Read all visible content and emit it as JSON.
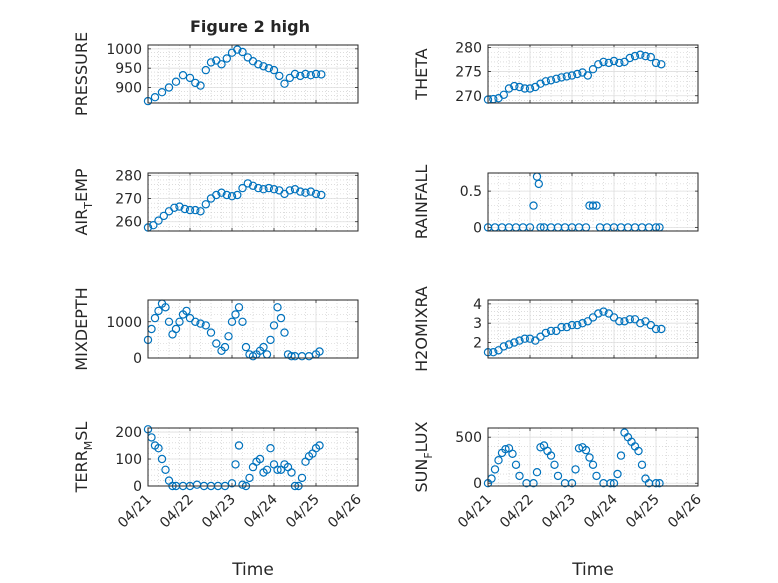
{
  "figure_title": "Figure 2 high",
  "colors": {
    "marker": "#0072BD",
    "axis": "#262626",
    "grid": "#dfdfdf",
    "minor_grid": "#c8c8c8",
    "background": "#ffffff"
  },
  "chart_data": [
    {
      "type": "scatter",
      "id": "pressure",
      "marker": "circle",
      "ylabel": "PRESSURE",
      "ylabel_sub": "",
      "xlabel": "",
      "xlim": [
        "04/21",
        "04/26"
      ],
      "xticks": [],
      "ylim": [
        860,
        1010
      ],
      "yticks": [
        "900",
        "950",
        "1000"
      ],
      "grid": true,
      "minor_grid": true,
      "x": [
        "04/21 00:00",
        "04/21 04:00",
        "04/21 08:00",
        "04/21 12:00",
        "04/21 16:00",
        "04/21 20:00",
        "04/22 00:00",
        "04/22 03:00",
        "04/22 06:00",
        "04/22 09:00",
        "04/22 12:00",
        "04/22 15:00",
        "04/22 18:00",
        "04/22 21:00",
        "04/23 00:00",
        "04/23 03:00",
        "04/23 06:00",
        "04/23 09:00",
        "04/23 12:00",
        "04/23 15:00",
        "04/23 18:00",
        "04/23 21:00",
        "04/24 00:00",
        "04/24 03:00",
        "04/24 06:00",
        "04/24 09:00",
        "04/24 12:00",
        "04/24 15:00",
        "04/24 18:00",
        "04/24 21:00",
        "04/25 00:00",
        "04/25 03:00"
      ],
      "y": [
        865,
        875,
        888,
        900,
        915,
        932,
        925,
        912,
        905,
        945,
        965,
        970,
        960,
        975,
        990,
        998,
        992,
        978,
        968,
        960,
        955,
        950,
        945,
        930,
        910,
        925,
        935,
        930,
        935,
        932,
        935,
        934
      ]
    },
    {
      "type": "scatter",
      "id": "theta",
      "marker": "circle",
      "ylabel": "THETA",
      "ylabel_sub": "",
      "xlabel": "",
      "xlim": [
        "04/21",
        "04/26"
      ],
      "xticks": [],
      "ylim": [
        268.5,
        280.5
      ],
      "yticks": [
        "270",
        "275",
        "280"
      ],
      "grid": true,
      "minor_grid": true,
      "x": [
        "04/21 00:00",
        "04/21 03:00",
        "04/21 06:00",
        "04/21 09:00",
        "04/21 12:00",
        "04/21 15:00",
        "04/21 18:00",
        "04/21 21:00",
        "04/22 00:00",
        "04/22 03:00",
        "04/22 06:00",
        "04/22 09:00",
        "04/22 12:00",
        "04/22 15:00",
        "04/22 18:00",
        "04/22 21:00",
        "04/23 00:00",
        "04/23 03:00",
        "04/23 06:00",
        "04/23 09:00",
        "04/23 12:00",
        "04/23 15:00",
        "04/23 18:00",
        "04/23 21:00",
        "04/24 00:00",
        "04/24 03:00",
        "04/24 06:00",
        "04/24 09:00",
        "04/24 12:00",
        "04/24 15:00",
        "04/24 18:00",
        "04/24 21:00",
        "04/25 00:00",
        "04/25 03:00"
      ],
      "y": [
        269.2,
        269.3,
        269.5,
        270.2,
        271.5,
        272.0,
        271.8,
        271.5,
        271.5,
        271.8,
        272.5,
        273.0,
        273.2,
        273.5,
        273.8,
        274.0,
        274.2,
        274.5,
        274.8,
        274.2,
        275.5,
        276.5,
        277.0,
        276.8,
        277.2,
        276.8,
        277.0,
        277.8,
        278.2,
        278.5,
        278.2,
        278.0,
        276.8,
        276.5
      ]
    },
    {
      "type": "scatter",
      "id": "air_temp",
      "marker": "circle",
      "ylabel": "AIR",
      "ylabel_sub": "T",
      "ylabel_suffix": "EMP",
      "xlabel": "",
      "xlim": [
        "04/21",
        "04/26"
      ],
      "xticks": [],
      "ylim": [
        256,
        281
      ],
      "yticks": [
        "260",
        "270",
        "280"
      ],
      "grid": true,
      "minor_grid": true,
      "x": [
        "04/21 00:00",
        "04/21 03:00",
        "04/21 06:00",
        "04/21 09:00",
        "04/21 12:00",
        "04/21 15:00",
        "04/21 18:00",
        "04/21 21:00",
        "04/22 00:00",
        "04/22 03:00",
        "04/22 06:00",
        "04/22 09:00",
        "04/22 12:00",
        "04/22 15:00",
        "04/22 18:00",
        "04/22 21:00",
        "04/23 00:00",
        "04/23 03:00",
        "04/23 06:00",
        "04/23 09:00",
        "04/23 12:00",
        "04/23 15:00",
        "04/23 18:00",
        "04/23 21:00",
        "04/24 00:00",
        "04/24 03:00",
        "04/24 06:00",
        "04/24 09:00",
        "04/24 12:00",
        "04/24 15:00",
        "04/24 18:00",
        "04/24 21:00",
        "04/25 00:00",
        "04/25 03:00"
      ],
      "y": [
        257.5,
        258.5,
        260.5,
        262.5,
        264.5,
        266.0,
        266.5,
        265.5,
        265.0,
        265.0,
        264.5,
        267.5,
        270.0,
        271.5,
        272.5,
        271.5,
        271.0,
        271.5,
        274.5,
        276.5,
        275.5,
        274.5,
        274.0,
        274.5,
        274.0,
        273.5,
        272.0,
        273.5,
        274.0,
        273.0,
        272.5,
        273.0,
        272.0,
        271.5
      ]
    },
    {
      "type": "scatter",
      "id": "rainfall",
      "marker": "circle",
      "ylabel": "RAINFALL",
      "ylabel_sub": "",
      "xlabel": "",
      "xlim": [
        "04/21",
        "04/26"
      ],
      "xticks": [],
      "ylim": [
        -0.05,
        0.75
      ],
      "yticks": [
        "0",
        "0.5"
      ],
      "grid": true,
      "minor_grid": true,
      "x": [
        "04/21 00:00",
        "04/21 04:00",
        "04/21 08:00",
        "04/21 12:00",
        "04/21 16:00",
        "04/21 20:00",
        "04/22 00:00",
        "04/22 02:00",
        "04/22 04:00",
        "04/22 05:00",
        "04/22 06:00",
        "04/22 08:00",
        "04/22 12:00",
        "04/22 16:00",
        "04/22 20:00",
        "04/23 00:00",
        "04/23 04:00",
        "04/23 08:00",
        "04/23 10:00",
        "04/23 12:00",
        "04/23 14:00",
        "04/23 16:00",
        "04/23 20:00",
        "04/24 00:00",
        "04/24 04:00",
        "04/24 08:00",
        "04/24 12:00",
        "04/24 16:00",
        "04/24 20:00",
        "04/25 00:00",
        "04/25 02:00"
      ],
      "y": [
        0,
        0,
        0,
        0,
        0,
        0,
        0,
        0.3,
        0.7,
        0.6,
        0,
        0,
        0,
        0,
        0,
        0,
        0,
        0,
        0.3,
        0.3,
        0.3,
        0,
        0,
        0,
        0,
        0,
        0,
        0,
        0,
        0,
        0
      ]
    },
    {
      "type": "scatter",
      "id": "mixdepth",
      "marker": "circle",
      "ylabel": "MIXDEPTH",
      "ylabel_sub": "",
      "xlabel": "",
      "xlim": [
        "04/21",
        "04/26"
      ],
      "xticks": [],
      "ylim": [
        0,
        1600
      ],
      "yticks": [
        "0",
        "1000"
      ],
      "grid": true,
      "minor_grid": true,
      "x": [
        "04/21 00:00",
        "04/21 02:00",
        "04/21 04:00",
        "04/21 06:00",
        "04/21 08:00",
        "04/21 10:00",
        "04/21 12:00",
        "04/21 14:00",
        "04/21 16:00",
        "04/21 18:00",
        "04/21 20:00",
        "04/21 22:00",
        "04/22 00:00",
        "04/22 03:00",
        "04/22 06:00",
        "04/22 09:00",
        "04/22 12:00",
        "04/22 15:00",
        "04/22 18:00",
        "04/22 20:00",
        "04/22 22:00",
        "04/23 00:00",
        "04/23 02:00",
        "04/23 04:00",
        "04/23 06:00",
        "04/23 08:00",
        "04/23 10:00",
        "04/23 12:00",
        "04/23 14:00",
        "04/23 16:00",
        "04/23 18:00",
        "04/23 20:00",
        "04/23 22:00",
        "04/24 00:00",
        "04/24 02:00",
        "04/24 04:00",
        "04/24 06:00",
        "04/24 08:00",
        "04/24 10:00",
        "04/24 12:00",
        "04/24 16:00",
        "04/24 20:00",
        "04/25 00:00",
        "04/25 02:00"
      ],
      "y": [
        500,
        800,
        1100,
        1300,
        1500,
        1400,
        1000,
        650,
        800,
        1000,
        1200,
        1300,
        1100,
        1000,
        950,
        900,
        700,
        400,
        200,
        300,
        600,
        1000,
        1200,
        1400,
        1000,
        300,
        100,
        50,
        100,
        200,
        300,
        100,
        500,
        900,
        1400,
        1100,
        700,
        100,
        50,
        50,
        50,
        50,
        100,
        180
      ]
    },
    {
      "type": "scatter",
      "id": "h2omixra",
      "marker": "circle",
      "ylabel": "H2OMIXRA",
      "ylabel_sub": "",
      "xlabel": "",
      "xlim": [
        "04/21",
        "04/26"
      ],
      "xticks": [],
      "ylim": [
        1.2,
        4.2
      ],
      "yticks": [
        "2",
        "3",
        "4"
      ],
      "grid": true,
      "minor_grid": true,
      "x": [
        "04/21 00:00",
        "04/21 03:00",
        "04/21 06:00",
        "04/21 09:00",
        "04/21 12:00",
        "04/21 15:00",
        "04/21 18:00",
        "04/21 21:00",
        "04/22 00:00",
        "04/22 03:00",
        "04/22 06:00",
        "04/22 09:00",
        "04/22 12:00",
        "04/22 15:00",
        "04/22 18:00",
        "04/22 21:00",
        "04/23 00:00",
        "04/23 03:00",
        "04/23 06:00",
        "04/23 09:00",
        "04/23 12:00",
        "04/23 15:00",
        "04/23 18:00",
        "04/23 21:00",
        "04/24 00:00",
        "04/24 03:00",
        "04/24 06:00",
        "04/24 09:00",
        "04/24 12:00",
        "04/24 15:00",
        "04/24 18:00",
        "04/24 21:00",
        "04/25 00:00",
        "04/25 03:00"
      ],
      "y": [
        1.5,
        1.5,
        1.6,
        1.8,
        1.9,
        2.0,
        2.1,
        2.2,
        2.2,
        2.1,
        2.3,
        2.5,
        2.6,
        2.6,
        2.8,
        2.8,
        2.9,
        2.9,
        3.0,
        3.1,
        3.3,
        3.5,
        3.6,
        3.5,
        3.3,
        3.1,
        3.1,
        3.2,
        3.2,
        3.0,
        3.1,
        2.9,
        2.7,
        2.7
      ]
    },
    {
      "type": "scatter",
      "id": "terr_msl",
      "marker": "circle",
      "ylabel": "TERR",
      "ylabel_sub": "M",
      "ylabel_suffix": "SL",
      "xlabel": "Time",
      "xlim": [
        "04/21",
        "04/26"
      ],
      "xticks": [
        "04/21",
        "04/22",
        "04/23",
        "04/24",
        "04/25",
        "04/26"
      ],
      "ylim": [
        0,
        215
      ],
      "yticks": [
        "0",
        "100",
        "200"
      ],
      "grid": true,
      "minor_grid": true,
      "x": [
        "04/21 00:00",
        "04/21 02:00",
        "04/21 04:00",
        "04/21 06:00",
        "04/21 08:00",
        "04/21 10:00",
        "04/21 12:00",
        "04/21 14:00",
        "04/21 16:00",
        "04/21 20:00",
        "04/22 00:00",
        "04/22 04:00",
        "04/22 08:00",
        "04/22 12:00",
        "04/22 16:00",
        "04/22 20:00",
        "04/23 00:00",
        "04/23 02:00",
        "04/23 04:00",
        "04/23 06:00",
        "04/23 08:00",
        "04/23 10:00",
        "04/23 12:00",
        "04/23 14:00",
        "04/23 16:00",
        "04/23 18:00",
        "04/23 20:00",
        "04/23 22:00",
        "04/24 00:00",
        "04/24 02:00",
        "04/24 04:00",
        "04/24 06:00",
        "04/24 08:00",
        "04/24 10:00",
        "04/24 12:00",
        "04/24 14:00",
        "04/24 16:00",
        "04/24 18:00",
        "04/24 20:00",
        "04/24 22:00",
        "04/25 00:00",
        "04/25 02:00"
      ],
      "y": [
        210,
        180,
        150,
        140,
        100,
        60,
        20,
        0,
        0,
        0,
        0,
        5,
        0,
        0,
        0,
        0,
        10,
        80,
        150,
        5,
        0,
        30,
        70,
        90,
        100,
        50,
        60,
        140,
        80,
        60,
        60,
        80,
        70,
        50,
        0,
        0,
        30,
        90,
        110,
        120,
        140,
        150
      ]
    },
    {
      "type": "scatter",
      "id": "sun_flux",
      "marker": "circle",
      "ylabel": "SUN",
      "ylabel_sub": "F",
      "ylabel_suffix": "LUX",
      "xlabel": "Time",
      "xlim": [
        "04/21",
        "04/26"
      ],
      "xticks": [
        "04/21",
        "04/22",
        "04/23",
        "04/24",
        "04/25",
        "04/26"
      ],
      "ylim": [
        -30,
        600
      ],
      "yticks": [
        "0",
        "500"
      ],
      "grid": true,
      "minor_grid": true,
      "x": [
        "04/21 00:00",
        "04/21 02:00",
        "04/21 04:00",
        "04/21 06:00",
        "04/21 08:00",
        "04/21 10:00",
        "04/21 12:00",
        "04/21 14:00",
        "04/21 16:00",
        "04/21 18:00",
        "04/21 22:00",
        "04/22 02:00",
        "04/22 04:00",
        "04/22 06:00",
        "04/22 08:00",
        "04/22 10:00",
        "04/22 12:00",
        "04/22 14:00",
        "04/22 16:00",
        "04/22 20:00",
        "04/23 00:00",
        "04/23 02:00",
        "04/23 04:00",
        "04/23 06:00",
        "04/23 08:00",
        "04/23 10:00",
        "04/23 12:00",
        "04/23 14:00",
        "04/23 18:00",
        "04/23 22:00",
        "04/24 00:00",
        "04/24 02:00",
        "04/24 04:00",
        "04/24 06:00",
        "04/24 08:00",
        "04/24 10:00",
        "04/24 12:00",
        "04/24 14:00",
        "04/24 16:00",
        "04/24 18:00",
        "04/24 20:00",
        "04/25 00:00",
        "04/25 02:00"
      ],
      "y": [
        0,
        50,
        150,
        250,
        330,
        370,
        380,
        320,
        200,
        80,
        0,
        0,
        120,
        390,
        410,
        350,
        300,
        200,
        80,
        0,
        0,
        150,
        380,
        390,
        360,
        280,
        200,
        80,
        0,
        0,
        0,
        100,
        300,
        550,
        500,
        450,
        400,
        350,
        200,
        50,
        0,
        0,
        0
      ]
    }
  ]
}
